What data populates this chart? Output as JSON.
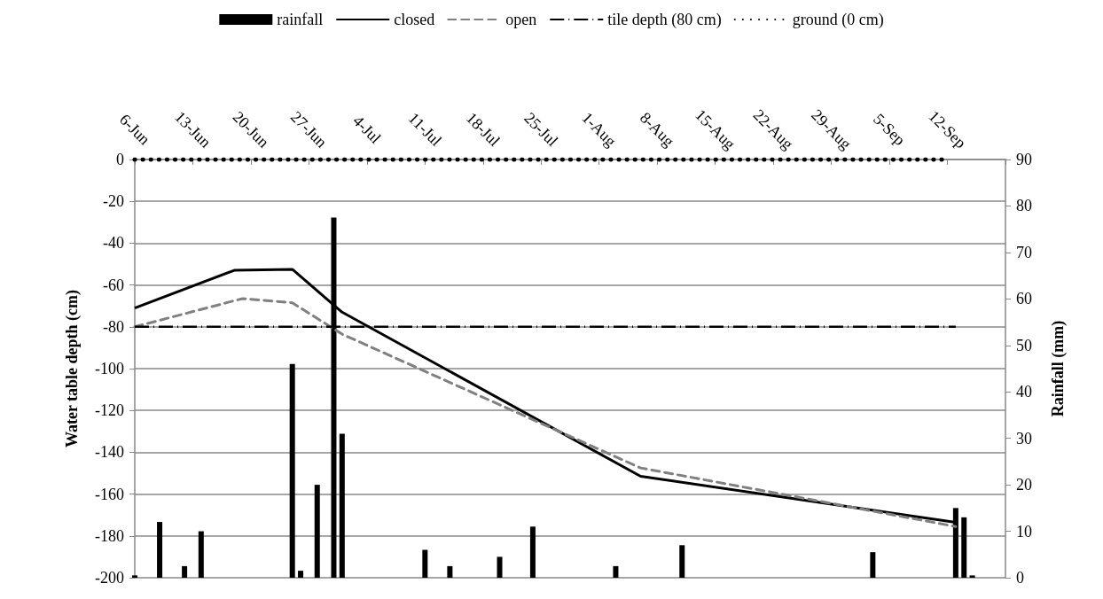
{
  "chart_data": {
    "type": "line",
    "xlabel": null,
    "ylabel": "Water table depth (cm)",
    "y2label": "Rainfall (mm)",
    "xlim": [
      "--06-06",
      "--09-19"
    ],
    "xticks": [
      {
        "value": "--06-06",
        "label": "6-Jun"
      },
      {
        "value": "--06-13",
        "label": "13-Jun"
      },
      {
        "value": "--06-20",
        "label": "20-Jun"
      },
      {
        "value": "--06-27",
        "label": "27-Jun"
      },
      {
        "value": "--07-04",
        "label": "4-Jul"
      },
      {
        "value": "--07-11",
        "label": "11-Jul"
      },
      {
        "value": "--07-18",
        "label": "18-Jul"
      },
      {
        "value": "--07-25",
        "label": "25-Jul"
      },
      {
        "value": "--08-01",
        "label": "1-Aug"
      },
      {
        "value": "--08-08",
        "label": "8-Aug"
      },
      {
        "value": "--08-15",
        "label": "15-Aug"
      },
      {
        "value": "--08-22",
        "label": "22-Aug"
      },
      {
        "value": "--08-29",
        "label": "29-Aug"
      },
      {
        "value": "--09-05",
        "label": "5-Sep"
      },
      {
        "value": "--09-12",
        "label": "12-Sep"
      },
      {
        "value": "--09-19",
        "label": null
      }
    ],
    "ylim": [
      -200,
      0
    ],
    "yticks": [
      -200,
      -180,
      -160,
      -140,
      -120,
      -100,
      -80,
      -60,
      -40,
      -20,
      0
    ],
    "y2lim": [
      0,
      90
    ],
    "y2ticks": [
      0,
      10,
      20,
      30,
      40,
      50,
      60,
      70,
      80,
      90
    ],
    "grid": "y",
    "legend": "top",
    "marker": "none",
    "series": [
      {
        "name": "rainfall",
        "type": "bar",
        "axis": "y2",
        "color": "#000000",
        "x": [
          "--06-06",
          "--06-09",
          "--06-12",
          "--06-14",
          "--06-25",
          "--06-26",
          "--06-28",
          "--06-30",
          "--07-01",
          "--07-11",
          "--07-14",
          "--07-20",
          "--07-24",
          "--08-03",
          "--08-11",
          "--09-03",
          "--09-13",
          "--09-14",
          "--09-15"
        ],
        "values": [
          0.5,
          12,
          2.5,
          10,
          46,
          1.5,
          20,
          77.5,
          31,
          6,
          2.5,
          4.5,
          11,
          2.5,
          7,
          5.5,
          15,
          13,
          0.5
        ]
      },
      {
        "name": "closed",
        "line_style": "solid",
        "color": "#000000",
        "x": [
          "--06-06",
          "--06-18",
          "--06-25",
          "--07-01",
          "--08-06",
          "--09-13"
        ],
        "values": [
          -71,
          -53,
          -52.5,
          -73,
          -151.5,
          -173.5
        ]
      },
      {
        "name": "open",
        "line_style": "dashed",
        "color": "#808080",
        "x": [
          "--06-06",
          "--06-19",
          "--06-25",
          "--07-01",
          "--08-06",
          "--09-13"
        ],
        "values": [
          -80,
          -66.5,
          -68.5,
          -83.5,
          -147.5,
          -175.5
        ]
      },
      {
        "name": "tile depth (80 cm)",
        "line_style": "dashdot",
        "color": "#000000",
        "x": [
          "--06-06",
          "--09-13"
        ],
        "values": [
          -80,
          -80
        ]
      },
      {
        "name": "ground (0 cm)",
        "line_style": "dotted",
        "color": "#000000",
        "x": [
          "--06-06",
          "--09-12"
        ],
        "values": [
          0,
          0
        ]
      }
    ]
  }
}
